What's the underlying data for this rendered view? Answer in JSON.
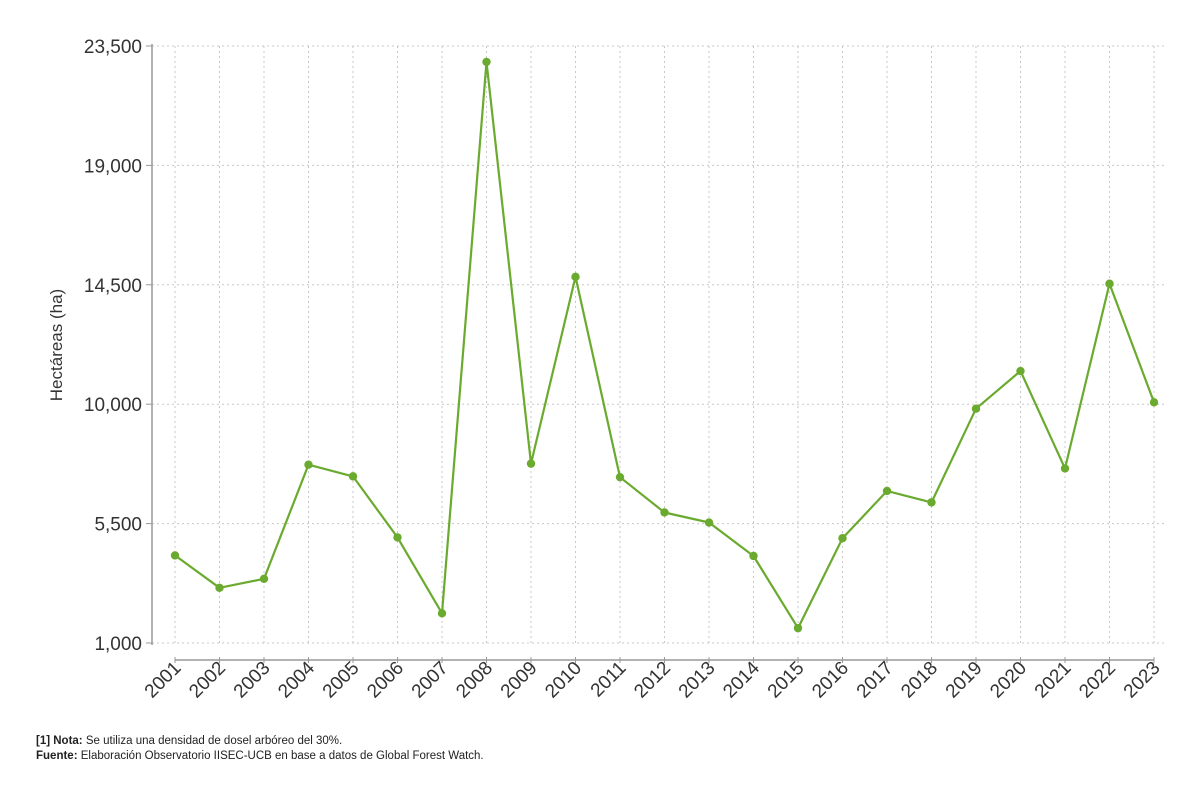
{
  "chart_data": {
    "type": "line",
    "title": "",
    "xlabel": "",
    "ylabel": "Hectáreas (ha)",
    "x": [
      "2001",
      "2002",
      "2003",
      "2004",
      "2005",
      "2006",
      "2007",
      "2008",
      "2009",
      "2010",
      "2011",
      "2012",
      "2013",
      "2014",
      "2015",
      "2016",
      "2017",
      "2018",
      "2019",
      "2020",
      "2021",
      "2022",
      "2023"
    ],
    "series": [
      {
        "values": [
          4300,
          3080,
          3420,
          7720,
          7280,
          4980,
          2120,
          22900,
          7760,
          14800,
          7250,
          5920,
          5540,
          4280,
          1560,
          4950,
          6730,
          6300,
          9830,
          11250,
          7580,
          14540,
          10070
        ]
      }
    ],
    "yticks": [
      "1,000",
      "5,500",
      "10,000",
      "14,500",
      "19,000",
      "23,500"
    ],
    "yticks_values": [
      1000,
      5500,
      10000,
      14500,
      19000,
      23500
    ],
    "ylim": [
      1000,
      23500
    ],
    "grid": true,
    "legend": "none",
    "colors": {
      "line": "#6aaa2e",
      "marker": "#6aaa2e",
      "grid": "#c8c8c8",
      "axis": "#999999"
    }
  },
  "notes": {
    "nota_label": "[1] Nota:",
    "nota_text": " Se utiliza una densidad de dosel arbóreo del 30%.",
    "fuente_label": "Fuente:",
    "fuente_text": " Elaboración Observatorio IISEC-UCB en base a datos de Global Forest Watch."
  }
}
